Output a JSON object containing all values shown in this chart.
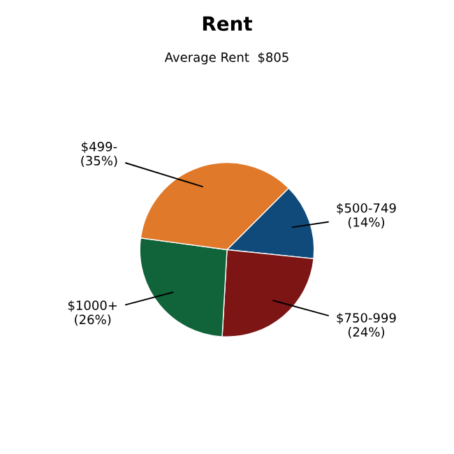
{
  "chart_data": {
    "type": "pie",
    "title": "Rent",
    "subtitle": "Average Rent  $805",
    "categories": [
      "$500-749",
      "$750-999",
      "$1000+",
      "$499-"
    ],
    "values": [
      14,
      24,
      26,
      35
    ],
    "value_labels": [
      "(14%)",
      "(24%)",
      "(26%)",
      "(35%)"
    ],
    "colors": [
      "#0f4a7a",
      "#7d1515",
      "#11633a",
      "#e07a2a"
    ],
    "legend": false
  }
}
